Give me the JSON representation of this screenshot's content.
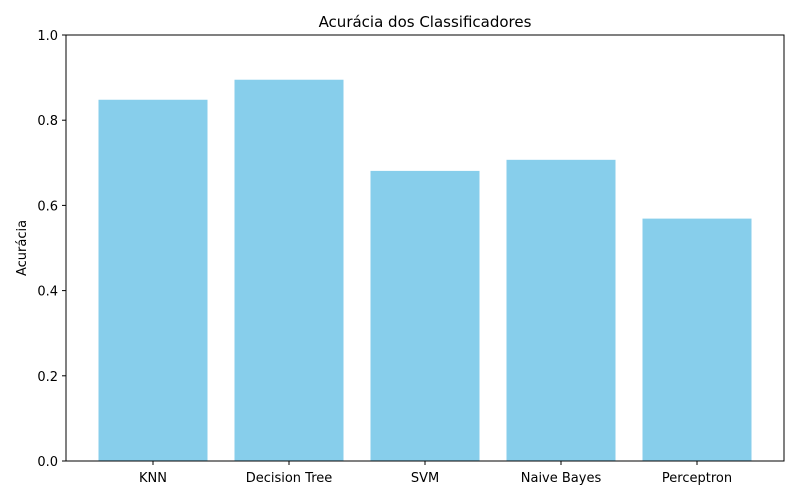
{
  "chart_data": {
    "type": "bar",
    "title": "Acurácia dos Classificadores",
    "xlabel": "",
    "ylabel": "Acurácia",
    "categories": [
      "KNN",
      "Decision Tree",
      "SVM",
      "Naive Bayes",
      "Perceptron"
    ],
    "values": [
      0.848,
      0.895,
      0.681,
      0.707,
      0.569
    ],
    "ylim": [
      0,
      1.0
    ],
    "yticks": [
      "0.0",
      "0.2",
      "0.4",
      "0.6",
      "0.8",
      "1.0"
    ],
    "grid": false,
    "legend": "none",
    "bar_color": "#87ceeb"
  }
}
